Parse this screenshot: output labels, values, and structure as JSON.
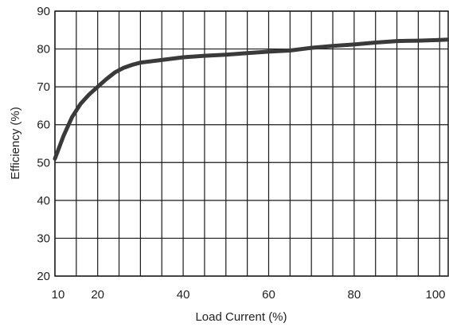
{
  "chart_data": {
    "type": "line",
    "title": "",
    "xlabel": "Load Current (%)",
    "ylabel": "Efficiency (%)",
    "xlim": [
      10,
      102
    ],
    "ylim": [
      20,
      90
    ],
    "grid": true,
    "x_ticks": [
      10,
      20,
      40,
      60,
      80,
      100
    ],
    "x_tick_labels": [
      "10",
      "20",
      "40",
      "60",
      "80",
      "100"
    ],
    "x_gridlines": [
      10,
      15,
      20,
      25,
      30,
      35,
      40,
      45,
      50,
      55,
      60,
      65,
      70,
      75,
      80,
      85,
      90,
      95,
      100
    ],
    "y_ticks": [
      20,
      30,
      40,
      50,
      60,
      70,
      80,
      90
    ],
    "y_tick_labels": [
      "20",
      "30",
      "40",
      "50",
      "60",
      "70",
      "80",
      "90"
    ],
    "series": [
      {
        "color": "#3a3a3a",
        "x": [
          10,
          12,
          14,
          16,
          18,
          20,
          22,
          24,
          26,
          28,
          30,
          35,
          40,
          45,
          50,
          55,
          60,
          65,
          70,
          75,
          80,
          85,
          90,
          95,
          100,
          102
        ],
        "y": [
          51,
          57,
          62,
          65.5,
          68,
          70,
          72,
          73.8,
          75,
          75.8,
          76.4,
          77.1,
          77.8,
          78.2,
          78.5,
          78.9,
          79.3,
          79.6,
          80.3,
          80.8,
          81.2,
          81.7,
          82.1,
          82.2,
          82.4,
          82.5
        ]
      }
    ]
  },
  "colors": {
    "grid": "#1a1a1a",
    "line": "#3a3a3a",
    "background": "#ffffff"
  }
}
